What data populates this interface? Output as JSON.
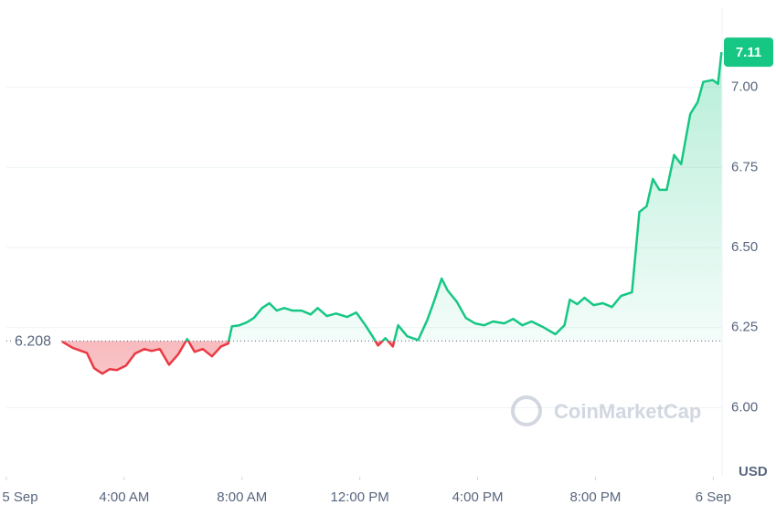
{
  "chart_data": {
    "type": "line",
    "x": [
      1.89,
      2.26,
      2.73,
      2.98,
      3.26,
      3.5,
      3.75,
      4.06,
      4.37,
      4.68,
      4.93,
      5.21,
      5.52,
      5.83,
      6.14,
      6.39,
      6.67,
      6.98,
      7.29,
      7.53,
      7.66,
      7.91,
      8.16,
      8.4,
      8.68,
      8.93,
      9.18,
      9.43,
      9.71,
      10.02,
      10.33,
      10.57,
      10.88,
      11.19,
      11.57,
      11.88,
      12.19,
      12.43,
      12.62,
      12.87,
      13.12,
      13.3,
      13.61,
      13.98,
      14.29,
      14.54,
      14.78,
      14.98,
      15.29,
      15.6,
      15.91,
      16.22,
      16.53,
      16.9,
      17.21,
      17.52,
      17.83,
      18.23,
      18.64,
      18.95,
      19.13,
      19.38,
      19.63,
      19.94,
      20.25,
      20.56,
      20.87,
      21.24,
      21.49,
      21.74,
      21.95,
      22.17,
      22.42,
      22.67,
      22.91,
      23.22,
      23.47,
      23.66,
      23.98,
      24.16,
      24.28
    ],
    "series": [
      {
        "color": "#16c784",
        "negative_color": "#ea3943",
        "values": [
          6.206,
          6.186,
          6.171,
          6.123,
          6.106,
          6.12,
          6.117,
          6.131,
          6.169,
          6.183,
          6.177,
          6.183,
          6.134,
          6.166,
          6.214,
          6.174,
          6.183,
          6.16,
          6.191,
          6.2,
          6.254,
          6.257,
          6.266,
          6.28,
          6.311,
          6.326,
          6.303,
          6.311,
          6.303,
          6.303,
          6.291,
          6.311,
          6.286,
          6.294,
          6.283,
          6.297,
          6.257,
          6.223,
          6.194,
          6.217,
          6.191,
          6.257,
          6.223,
          6.211,
          6.274,
          6.337,
          6.403,
          6.366,
          6.331,
          6.28,
          6.263,
          6.257,
          6.269,
          6.263,
          6.277,
          6.257,
          6.269,
          6.251,
          6.229,
          6.257,
          6.337,
          6.323,
          6.343,
          6.32,
          6.326,
          6.314,
          6.349,
          6.36,
          6.611,
          6.629,
          6.714,
          6.68,
          6.68,
          6.789,
          6.76,
          6.917,
          6.954,
          7.017,
          7.023,
          7.011,
          7.11
        ]
      }
    ],
    "reference_value": 6.208,
    "xlim": [
      0,
      24.3
    ],
    "xticks": [
      {
        "value": 0,
        "label": "5 Sep"
      },
      {
        "value": 4,
        "label": "4:00 AM"
      },
      {
        "value": 8,
        "label": "8:00 AM"
      },
      {
        "value": 12,
        "label": "12:00 PM"
      },
      {
        "value": 16,
        "label": "4:00 PM"
      },
      {
        "value": 20,
        "label": "8:00 PM"
      },
      {
        "value": 24,
        "label": "6 Sep"
      }
    ],
    "ylim": [
      5.79,
      7.25
    ],
    "yticks": [
      {
        "value": 6,
        "label": "6.00"
      },
      {
        "value": 6.25,
        "label": "6.25"
      },
      {
        "value": 6.5,
        "label": "6.50"
      },
      {
        "value": 6.75,
        "label": "6.75"
      },
      {
        "value": 7,
        "label": "7.00"
      }
    ],
    "y_unit": "USD",
    "watermark": "CoinMarketCap",
    "grid": true
  }
}
